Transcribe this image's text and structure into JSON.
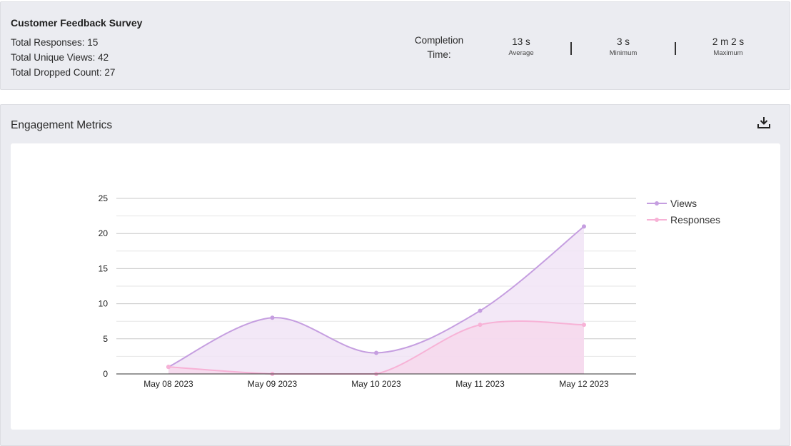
{
  "summary": {
    "title": "Customer Feedback Survey",
    "stats": [
      "Total Responses: 15",
      "Total Unique Views: 42",
      "Total Dropped Count: 27"
    ],
    "completion": {
      "label_line1": "Completion",
      "label_line2": "Time:",
      "average": {
        "value": "13 s",
        "label": "Average"
      },
      "minimum": {
        "value": "3 s",
        "label": "Minimum"
      },
      "maximum": {
        "value": "2 m 2 s",
        "label": "Maximum"
      }
    }
  },
  "engagement": {
    "title": "Engagement Metrics",
    "download_icon": "download-icon"
  },
  "colors": {
    "views": "#c59ee0",
    "views_fill": "#f1e4f6",
    "responses": "#f7b2d6",
    "responses_fill": "#f6d8ec",
    "grid": "#c8c8c8",
    "grid_minor": "#e6e6e6",
    "axis": "#333333"
  },
  "chart_data": {
    "type": "area",
    "categories": [
      "May 08 2023",
      "May 09 2023",
      "May 10 2023",
      "May 11 2023",
      "May 12 2023"
    ],
    "series": [
      {
        "name": "Views",
        "values": [
          1,
          8,
          3,
          9,
          21
        ]
      },
      {
        "name": "Responses",
        "values": [
          1,
          0,
          0,
          7,
          7
        ]
      }
    ],
    "yticks": [
      0,
      5,
      10,
      15,
      20,
      25
    ],
    "ylim": [
      0,
      25
    ],
    "grid": true,
    "legend": "top-right"
  }
}
